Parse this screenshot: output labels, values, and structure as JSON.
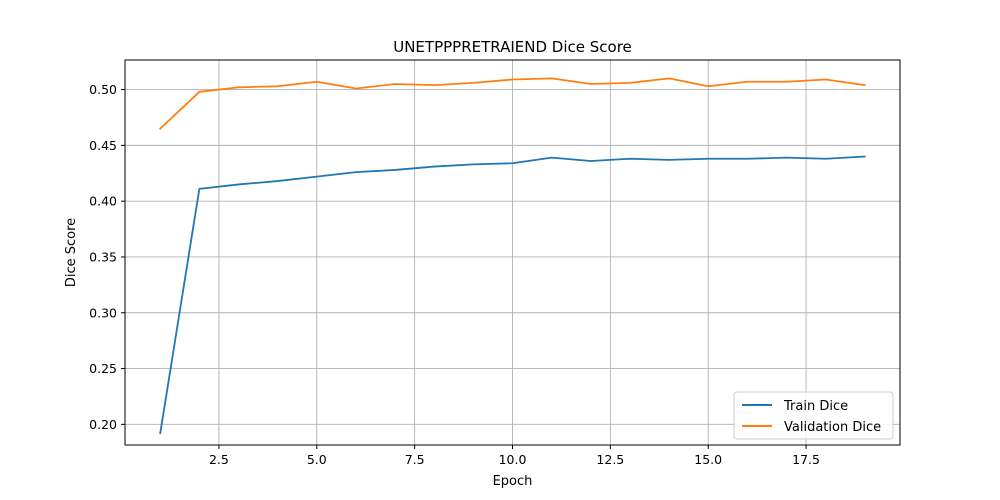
{
  "chart_data": {
    "type": "line",
    "title": "UNETPPPRETRAIEND Dice Score",
    "xlabel": "Epoch",
    "ylabel": "Dice Score",
    "xlim": [
      0.1,
      19.9
    ],
    "ylim": [
      0.1815,
      0.5265
    ],
    "xticks": [
      2.5,
      5.0,
      7.5,
      10.0,
      12.5,
      15.0,
      17.5
    ],
    "yticks": [
      0.2,
      0.25,
      0.3,
      0.35,
      0.4,
      0.45,
      0.5
    ],
    "xtick_labels": [
      "2.5",
      "5.0",
      "7.5",
      "10.0",
      "12.5",
      "15.0",
      "17.5"
    ],
    "ytick_labels": [
      "0.20",
      "0.25",
      "0.30",
      "0.35",
      "0.40",
      "0.45",
      "0.50"
    ],
    "grid": true,
    "legend_position": "lower-right",
    "x": [
      1,
      2,
      3,
      4,
      5,
      6,
      7,
      8,
      9,
      10,
      11,
      12,
      13,
      14,
      15,
      16,
      17,
      18,
      19
    ],
    "series": [
      {
        "name": "Train Dice",
        "color": "#1f77b4",
        "values": [
          0.192,
          0.411,
          0.415,
          0.418,
          0.422,
          0.426,
          0.428,
          0.431,
          0.433,
          0.434,
          0.439,
          0.436,
          0.438,
          0.437,
          0.438,
          0.438,
          0.439,
          0.438,
          0.44
        ]
      },
      {
        "name": "Validation Dice",
        "color": "#ff7f0e",
        "values": [
          0.465,
          0.498,
          0.502,
          0.503,
          0.507,
          0.501,
          0.505,
          0.504,
          0.506,
          0.509,
          0.51,
          0.505,
          0.506,
          0.51,
          0.503,
          0.507,
          0.507,
          0.509,
          0.504
        ]
      }
    ]
  }
}
